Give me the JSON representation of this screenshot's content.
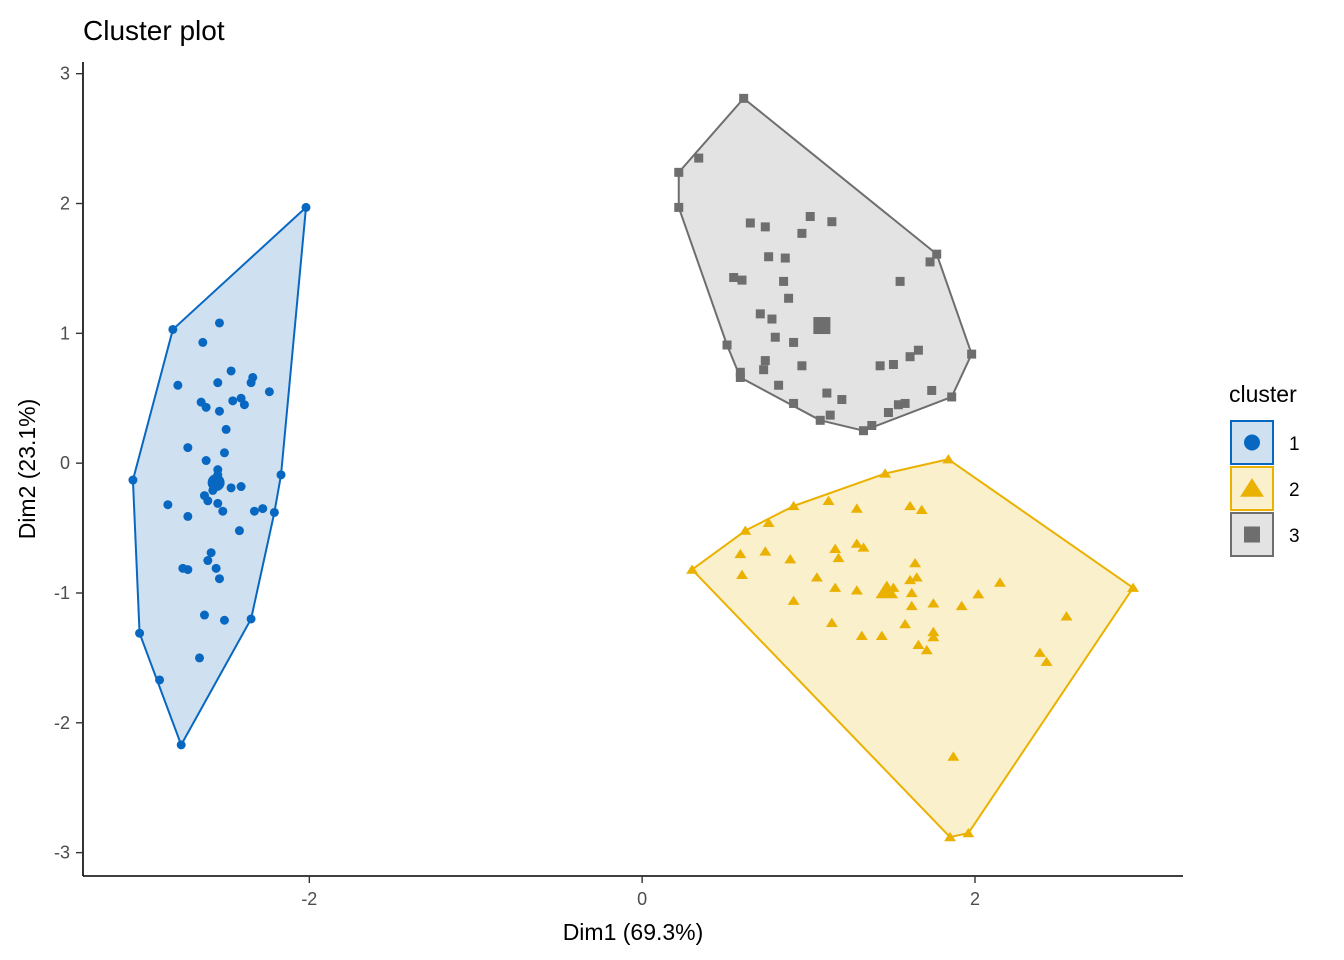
{
  "chart_data": {
    "type": "scatter",
    "title": "Cluster plot",
    "xlabel": "Dim1 (69.3%)",
    "ylabel": "Dim2 (23.1%)",
    "xlim": [
      -3.36,
      3.25
    ],
    "ylim": [
      -3.18,
      3.09
    ],
    "xticks": [
      -2,
      0,
      2
    ],
    "yticks": [
      -3,
      -2,
      -1,
      0,
      1,
      2,
      3
    ],
    "grid": false,
    "legend": {
      "title": "cluster",
      "placement": "right"
    },
    "hulls": true,
    "series": [
      {
        "name": "1",
        "marker": "circle",
        "color": "#0868C1",
        "fill": "#CFE0F0",
        "center": [
          -2.56,
          -0.15
        ],
        "points": [
          [
            -2.02,
            1.97
          ],
          [
            -2.82,
            1.03
          ],
          [
            -2.54,
            1.08
          ],
          [
            -2.64,
            0.93
          ],
          [
            -2.79,
            0.6
          ],
          [
            -2.55,
            0.62
          ],
          [
            -2.47,
            0.71
          ],
          [
            -2.34,
            0.66
          ],
          [
            -2.35,
            0.62
          ],
          [
            -2.24,
            0.55
          ],
          [
            -2.65,
            0.47
          ],
          [
            -2.62,
            0.43
          ],
          [
            -2.54,
            0.4
          ],
          [
            -2.46,
            0.48
          ],
          [
            -2.41,
            0.5
          ],
          [
            -2.39,
            0.45
          ],
          [
            -2.5,
            0.26
          ],
          [
            -2.73,
            0.12
          ],
          [
            -2.51,
            0.08
          ],
          [
            -2.62,
            0.02
          ],
          [
            -2.55,
            -0.05
          ],
          [
            -2.55,
            -0.09
          ],
          [
            -2.47,
            -0.19
          ],
          [
            -2.41,
            -0.18
          ],
          [
            -3.06,
            -0.13
          ],
          [
            -2.17,
            -0.09
          ],
          [
            -2.85,
            -0.32
          ],
          [
            -2.73,
            -0.41
          ],
          [
            -2.63,
            -0.25
          ],
          [
            -2.61,
            -0.29
          ],
          [
            -2.58,
            -0.21
          ],
          [
            -2.55,
            -0.31
          ],
          [
            -2.52,
            -0.37
          ],
          [
            -2.33,
            -0.37
          ],
          [
            -2.28,
            -0.35
          ],
          [
            -2.21,
            -0.38
          ],
          [
            -2.42,
            -0.52
          ],
          [
            -2.59,
            -0.69
          ],
          [
            -2.61,
            -0.75
          ],
          [
            -2.76,
            -0.81
          ],
          [
            -2.73,
            -0.82
          ],
          [
            -2.56,
            -0.81
          ],
          [
            -2.54,
            -0.89
          ],
          [
            -2.63,
            -1.17
          ],
          [
            -2.51,
            -1.21
          ],
          [
            -2.35,
            -1.2
          ],
          [
            -3.02,
            -1.31
          ],
          [
            -2.66,
            -1.5
          ],
          [
            -2.9,
            -1.67
          ],
          [
            -2.77,
            -2.17
          ]
        ]
      },
      {
        "name": "2",
        "marker": "triangle",
        "color": "#EBB100",
        "fill": "#FAF0CC",
        "center": [
          1.47,
          -0.98
        ],
        "points": [
          [
            1.84,
            0.03
          ],
          [
            1.46,
            -0.08
          ],
          [
            1.12,
            -0.29
          ],
          [
            0.91,
            -0.33
          ],
          [
            1.29,
            -0.35
          ],
          [
            1.61,
            -0.33
          ],
          [
            1.68,
            -0.36
          ],
          [
            0.76,
            -0.46
          ],
          [
            0.62,
            -0.52
          ],
          [
            0.59,
            -0.7
          ],
          [
            0.6,
            -0.86
          ],
          [
            0.74,
            -0.68
          ],
          [
            0.89,
            -0.74
          ],
          [
            1.16,
            -0.66
          ],
          [
            1.18,
            -0.73
          ],
          [
            1.29,
            -0.62
          ],
          [
            1.33,
            -0.65
          ],
          [
            1.64,
            -0.77
          ],
          [
            1.65,
            -0.88
          ],
          [
            0.3,
            -0.82
          ],
          [
            1.05,
            -0.88
          ],
          [
            1.16,
            -0.96
          ],
          [
            1.29,
            -0.98
          ],
          [
            1.51,
            -0.96
          ],
          [
            1.61,
            -0.9
          ],
          [
            1.62,
            -1.0
          ],
          [
            1.62,
            -1.1
          ],
          [
            1.75,
            -1.08
          ],
          [
            1.92,
            -1.1
          ],
          [
            2.02,
            -1.01
          ],
          [
            2.15,
            -0.92
          ],
          [
            0.91,
            -1.06
          ],
          [
            1.14,
            -1.23
          ],
          [
            1.32,
            -1.33
          ],
          [
            1.44,
            -1.33
          ],
          [
            1.58,
            -1.24
          ],
          [
            1.75,
            -1.3
          ],
          [
            1.75,
            -1.34
          ],
          [
            1.66,
            -1.4
          ],
          [
            1.71,
            -1.44
          ],
          [
            2.39,
            -1.46
          ],
          [
            2.43,
            -1.53
          ],
          [
            2.55,
            -1.18
          ],
          [
            2.95,
            -0.96
          ],
          [
            1.87,
            -2.26
          ],
          [
            1.85,
            -2.88
          ],
          [
            1.96,
            -2.85
          ]
        ]
      },
      {
        "name": "3",
        "marker": "square",
        "color": "#6E6E6E",
        "fill": "#E3E3E3",
        "center": [
          1.08,
          1.06
        ],
        "points": [
          [
            0.61,
            2.81
          ],
          [
            0.34,
            2.35
          ],
          [
            0.22,
            2.24
          ],
          [
            0.22,
            1.97
          ],
          [
            0.65,
            1.85
          ],
          [
            0.74,
            1.82
          ],
          [
            1.01,
            1.9
          ],
          [
            1.14,
            1.86
          ],
          [
            0.96,
            1.77
          ],
          [
            0.76,
            1.59
          ],
          [
            0.86,
            1.58
          ],
          [
            0.55,
            1.43
          ],
          [
            0.6,
            1.41
          ],
          [
            0.85,
            1.4
          ],
          [
            1.77,
            1.61
          ],
          [
            1.73,
            1.55
          ],
          [
            1.55,
            1.4
          ],
          [
            0.88,
            1.27
          ],
          [
            0.71,
            1.15
          ],
          [
            0.78,
            1.11
          ],
          [
            0.8,
            0.97
          ],
          [
            0.51,
            0.91
          ],
          [
            0.91,
            0.93
          ],
          [
            1.98,
            0.84
          ],
          [
            1.66,
            0.87
          ],
          [
            1.61,
            0.82
          ],
          [
            1.51,
            0.76
          ],
          [
            1.43,
            0.75
          ],
          [
            0.74,
            0.79
          ],
          [
            0.73,
            0.72
          ],
          [
            0.59,
            0.7
          ],
          [
            0.59,
            0.66
          ],
          [
            0.96,
            0.75
          ],
          [
            0.82,
            0.6
          ],
          [
            1.11,
            0.54
          ],
          [
            1.86,
            0.51
          ],
          [
            1.74,
            0.56
          ],
          [
            1.58,
            0.46
          ],
          [
            1.54,
            0.45
          ],
          [
            1.2,
            0.49
          ],
          [
            0.91,
            0.46
          ],
          [
            1.13,
            0.37
          ],
          [
            1.07,
            0.33
          ],
          [
            1.48,
            0.39
          ],
          [
            1.38,
            0.29
          ],
          [
            1.33,
            0.25
          ]
        ]
      }
    ]
  }
}
